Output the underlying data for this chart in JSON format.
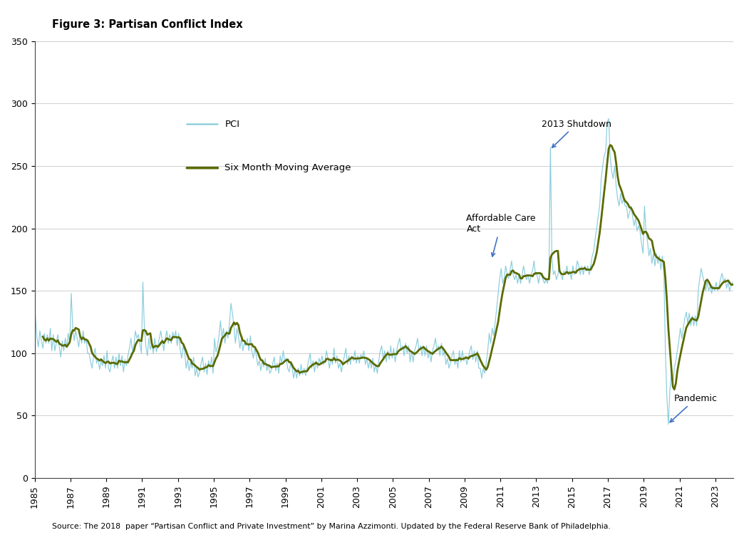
{
  "title": "Figure 3: Partisan Conflict Index",
  "source_text": "Source: The 2018  paper “Partisan Conflict and Private Investment” by Marina Azzimonti. Updated by the Federal Reserve Bank of Philadelphia.",
  "pci_color": "#7ec8d8",
  "ma_color": "#5a6b00",
  "annotation_color": "#4472c4",
  "ylim": [
    0,
    350
  ],
  "yticks": [
    0,
    50,
    100,
    150,
    200,
    250,
    300,
    350
  ],
  "background_color": "#ffffff",
  "legend_pci_label": "PCI",
  "legend_ma_label": "Six Month Moving Average",
  "pci_data": {
    "1985-01": 130,
    "1985-02": 113,
    "1985-03": 105,
    "1985-04": 118,
    "1985-05": 110,
    "1985-06": 104,
    "1985-07": 116,
    "1985-08": 108,
    "1985-09": 115,
    "1985-10": 108,
    "1985-11": 120,
    "1985-12": 102,
    "1986-01": 115,
    "1986-02": 102,
    "1986-03": 108,
    "1986-04": 115,
    "1986-05": 105,
    "1986-06": 97,
    "1986-07": 110,
    "1986-08": 102,
    "1986-09": 112,
    "1986-10": 105,
    "1986-11": 116,
    "1986-12": 108,
    "1987-01": 148,
    "1987-02": 122,
    "1987-03": 110,
    "1987-04": 118,
    "1987-05": 112,
    "1987-06": 105,
    "1987-07": 115,
    "1987-08": 108,
    "1987-09": 118,
    "1987-10": 108,
    "1987-11": 112,
    "1987-12": 100,
    "1988-01": 100,
    "1988-02": 93,
    "1988-03": 88,
    "1988-04": 98,
    "1988-05": 104,
    "1988-06": 92,
    "1988-07": 96,
    "1988-08": 87,
    "1988-09": 94,
    "1988-10": 90,
    "1988-11": 98,
    "1988-12": 88,
    "1989-01": 102,
    "1989-02": 88,
    "1989-03": 85,
    "1989-04": 93,
    "1989-05": 98,
    "1989-06": 88,
    "1989-07": 97,
    "1989-08": 88,
    "1989-09": 100,
    "1989-10": 90,
    "1989-11": 98,
    "1989-12": 85,
    "1990-01": 95,
    "1990-02": 90,
    "1990-03": 98,
    "1990-04": 104,
    "1990-05": 112,
    "1990-06": 102,
    "1990-07": 106,
    "1990-08": 118,
    "1990-09": 112,
    "1990-10": 115,
    "1990-11": 108,
    "1990-12": 100,
    "1991-01": 157,
    "1991-02": 120,
    "1991-03": 106,
    "1991-04": 98,
    "1991-05": 112,
    "1991-06": 103,
    "1991-07": 108,
    "1991-08": 100,
    "1991-09": 112,
    "1991-10": 101,
    "1991-11": 106,
    "1991-12": 112,
    "1992-01": 118,
    "1992-02": 110,
    "1992-03": 102,
    "1992-04": 112,
    "1992-05": 118,
    "1992-06": 108,
    "1992-07": 115,
    "1992-08": 108,
    "1992-09": 117,
    "1992-10": 112,
    "1992-11": 118,
    "1992-12": 106,
    "1993-01": 116,
    "1993-02": 103,
    "1993-03": 96,
    "1993-04": 106,
    "1993-05": 101,
    "1993-06": 88,
    "1993-07": 95,
    "1993-08": 86,
    "1993-09": 93,
    "1993-10": 88,
    "1993-11": 97,
    "1993-12": 82,
    "1994-01": 88,
    "1994-02": 81,
    "1994-03": 85,
    "1994-04": 92,
    "1994-05": 97,
    "1994-06": 85,
    "1994-07": 92,
    "1994-08": 83,
    "1994-09": 94,
    "1994-10": 88,
    "1994-11": 97,
    "1994-12": 84,
    "1995-01": 112,
    "1995-02": 101,
    "1995-03": 106,
    "1995-04": 114,
    "1995-05": 126,
    "1995-06": 112,
    "1995-07": 120,
    "1995-08": 108,
    "1995-09": 118,
    "1995-10": 112,
    "1995-11": 124,
    "1995-12": 140,
    "1996-01": 132,
    "1996-02": 122,
    "1996-03": 108,
    "1996-04": 120,
    "1996-05": 114,
    "1996-06": 104,
    "1996-07": 112,
    "1996-08": 102,
    "1996-09": 108,
    "1996-10": 106,
    "1996-11": 112,
    "1996-12": 102,
    "1997-01": 114,
    "1997-02": 102,
    "1997-03": 96,
    "1997-04": 104,
    "1997-05": 98,
    "1997-06": 90,
    "1997-07": 94,
    "1997-08": 86,
    "1997-09": 94,
    "1997-10": 89,
    "1997-11": 96,
    "1997-12": 86,
    "1998-01": 91,
    "1998-02": 84,
    "1998-03": 86,
    "1998-04": 92,
    "1998-05": 97,
    "1998-06": 86,
    "1998-07": 92,
    "1998-08": 84,
    "1998-09": 98,
    "1998-10": 92,
    "1998-11": 102,
    "1998-12": 94,
    "1999-01": 96,
    "1999-02": 88,
    "1999-03": 85,
    "1999-04": 92,
    "1999-05": 88,
    "1999-06": 80,
    "1999-07": 88,
    "1999-08": 80,
    "1999-09": 88,
    "1999-10": 82,
    "1999-11": 91,
    "1999-12": 83,
    "2000-01": 88,
    "2000-02": 82,
    "2000-03": 88,
    "2000-04": 94,
    "2000-05": 100,
    "2000-06": 88,
    "2000-07": 94,
    "2000-08": 85,
    "2000-09": 94,
    "2000-10": 88,
    "2000-11": 96,
    "2000-12": 92,
    "2001-01": 98,
    "2001-02": 91,
    "2001-03": 94,
    "2001-04": 102,
    "2001-05": 96,
    "2001-06": 88,
    "2001-07": 96,
    "2001-08": 91,
    "2001-09": 104,
    "2001-10": 92,
    "2001-11": 98,
    "2001-12": 88,
    "2002-01": 92,
    "2002-02": 85,
    "2002-03": 92,
    "2002-04": 98,
    "2002-05": 104,
    "2002-06": 91,
    "2002-07": 98,
    "2002-08": 91,
    "2002-09": 98,
    "2002-10": 94,
    "2002-11": 102,
    "2002-12": 92,
    "2003-01": 98,
    "2003-02": 92,
    "2003-03": 99,
    "2003-04": 96,
    "2003-05": 102,
    "2003-06": 91,
    "2003-07": 96,
    "2003-08": 88,
    "2003-09": 94,
    "2003-10": 88,
    "2003-11": 96,
    "2003-12": 85,
    "2004-01": 91,
    "2004-02": 84,
    "2004-03": 94,
    "2004-04": 102,
    "2004-05": 106,
    "2004-06": 95,
    "2004-07": 102,
    "2004-08": 93,
    "2004-09": 102,
    "2004-10": 95,
    "2004-11": 106,
    "2004-12": 96,
    "2005-01": 104,
    "2005-02": 93,
    "2005-03": 102,
    "2005-04": 108,
    "2005-05": 112,
    "2005-06": 102,
    "2005-07": 106,
    "2005-08": 98,
    "2005-09": 108,
    "2005-10": 100,
    "2005-11": 106,
    "2005-12": 93,
    "2006-01": 102,
    "2006-02": 93,
    "2006-03": 102,
    "2006-04": 106,
    "2006-05": 112,
    "2006-06": 102,
    "2006-07": 106,
    "2006-08": 98,
    "2006-09": 106,
    "2006-10": 98,
    "2006-11": 106,
    "2006-12": 96,
    "2007-01": 102,
    "2007-02": 93,
    "2007-03": 102,
    "2007-04": 106,
    "2007-05": 112,
    "2007-06": 102,
    "2007-07": 106,
    "2007-08": 98,
    "2007-09": 108,
    "2007-10": 98,
    "2007-11": 102,
    "2007-12": 91,
    "2008-01": 96,
    "2008-02": 88,
    "2008-03": 92,
    "2008-04": 98,
    "2008-05": 102,
    "2008-06": 91,
    "2008-07": 96,
    "2008-08": 88,
    "2008-09": 102,
    "2008-10": 93,
    "2008-11": 102,
    "2008-12": 94,
    "2009-01": 98,
    "2009-02": 91,
    "2009-03": 96,
    "2009-04": 102,
    "2009-05": 106,
    "2009-06": 95,
    "2009-07": 102,
    "2009-08": 93,
    "2009-09": 102,
    "2009-10": 88,
    "2009-11": 88,
    "2009-12": 80,
    "2010-01": 88,
    "2010-02": 84,
    "2010-03": 93,
    "2010-04": 102,
    "2010-05": 116,
    "2010-06": 108,
    "2010-07": 120,
    "2010-08": 114,
    "2010-09": 125,
    "2010-10": 136,
    "2010-11": 148,
    "2010-12": 160,
    "2011-01": 168,
    "2011-02": 156,
    "2011-03": 160,
    "2011-04": 170,
    "2011-05": 164,
    "2011-06": 160,
    "2011-07": 167,
    "2011-08": 174,
    "2011-09": 163,
    "2011-10": 159,
    "2011-11": 163,
    "2011-12": 156,
    "2012-01": 163,
    "2012-02": 156,
    "2012-03": 163,
    "2012-04": 170,
    "2012-05": 163,
    "2012-06": 159,
    "2012-07": 163,
    "2012-08": 156,
    "2012-09": 163,
    "2012-10": 166,
    "2012-11": 174,
    "2012-12": 163,
    "2013-01": 163,
    "2013-02": 156,
    "2013-03": 163,
    "2013-04": 163,
    "2013-05": 159,
    "2013-06": 156,
    "2013-07": 159,
    "2013-08": 156,
    "2013-09": 163,
    "2013-10": 265,
    "2013-11": 176,
    "2013-12": 163,
    "2014-01": 166,
    "2014-02": 159,
    "2014-03": 163,
    "2014-04": 170,
    "2014-05": 163,
    "2014-06": 159,
    "2014-07": 166,
    "2014-08": 163,
    "2014-09": 170,
    "2014-10": 163,
    "2014-11": 166,
    "2014-12": 159,
    "2015-01": 170,
    "2015-02": 163,
    "2015-03": 166,
    "2015-04": 174,
    "2015-05": 170,
    "2015-06": 163,
    "2015-07": 170,
    "2015-08": 163,
    "2015-09": 170,
    "2015-10": 166,
    "2015-11": 170,
    "2015-12": 163,
    "2016-01": 170,
    "2016-02": 178,
    "2016-03": 182,
    "2016-04": 192,
    "2016-05": 200,
    "2016-06": 210,
    "2016-07": 218,
    "2016-08": 240,
    "2016-09": 250,
    "2016-10": 258,
    "2016-11": 262,
    "2016-12": 285,
    "2017-01": 288,
    "2017-02": 258,
    "2017-03": 246,
    "2017-04": 240,
    "2017-05": 250,
    "2017-06": 234,
    "2017-07": 224,
    "2017-08": 218,
    "2017-09": 228,
    "2017-10": 220,
    "2017-11": 224,
    "2017-12": 218,
    "2018-01": 218,
    "2018-02": 208,
    "2018-03": 213,
    "2018-04": 218,
    "2018-05": 210,
    "2018-06": 202,
    "2018-07": 208,
    "2018-08": 198,
    "2018-09": 202,
    "2018-10": 198,
    "2018-11": 188,
    "2018-12": 180,
    "2019-01": 218,
    "2019-02": 198,
    "2019-03": 190,
    "2019-04": 178,
    "2019-05": 184,
    "2019-06": 172,
    "2019-07": 180,
    "2019-08": 170,
    "2019-09": 180,
    "2019-10": 172,
    "2019-11": 178,
    "2019-12": 167,
    "2020-01": 178,
    "2020-02": 164,
    "2020-03": 102,
    "2020-04": 65,
    "2020-05": 43,
    "2020-06": 70,
    "2020-07": 84,
    "2020-08": 76,
    "2020-09": 88,
    "2020-10": 94,
    "2020-11": 102,
    "2020-12": 110,
    "2021-01": 120,
    "2021-02": 112,
    "2021-03": 120,
    "2021-04": 128,
    "2021-05": 133,
    "2021-06": 124,
    "2021-07": 132,
    "2021-08": 122,
    "2021-09": 130,
    "2021-10": 122,
    "2021-11": 130,
    "2021-12": 122,
    "2022-01": 150,
    "2022-02": 160,
    "2022-03": 168,
    "2022-04": 162,
    "2022-05": 157,
    "2022-06": 150,
    "2022-07": 157,
    "2022-08": 150,
    "2022-09": 154,
    "2022-10": 148,
    "2022-11": 154,
    "2022-12": 150,
    "2023-01": 157,
    "2023-02": 150,
    "2023-03": 154,
    "2023-04": 160,
    "2023-05": 164,
    "2023-06": 157,
    "2023-07": 160,
    "2023-08": 152,
    "2023-09": 157,
    "2023-10": 150,
    "2023-11": 154,
    "2023-12": 157
  }
}
